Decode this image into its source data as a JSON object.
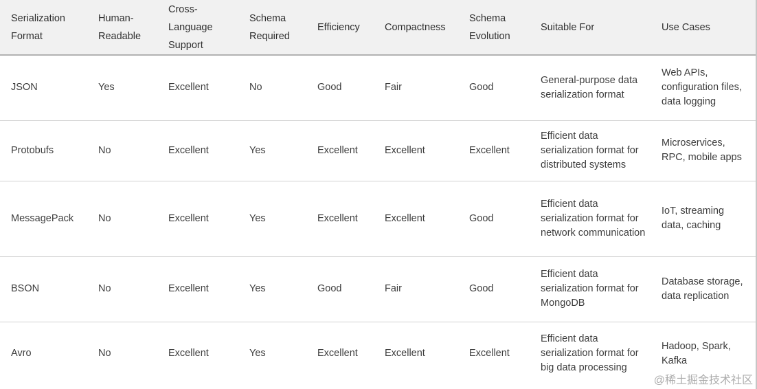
{
  "table": {
    "columns": [
      {
        "id": "format",
        "label": "Serialization Format"
      },
      {
        "id": "human-readable",
        "label": "Human-Readable"
      },
      {
        "id": "cross-language",
        "label": "Cross-Language Support"
      },
      {
        "id": "schema-required",
        "label": "Schema Required"
      },
      {
        "id": "efficiency",
        "label": "Efficiency"
      },
      {
        "id": "compactness",
        "label": "Compactness"
      },
      {
        "id": "schema-evolution",
        "label": "Schema Evolution"
      },
      {
        "id": "suitable-for",
        "label": "Suitable For"
      },
      {
        "id": "use-cases",
        "label": "Use Cases"
      }
    ],
    "rows": [
      [
        "JSON",
        "Yes",
        "Excellent",
        "No",
        "Good",
        "Fair",
        "Good",
        "General-purpose data serialization format",
        "Web APIs, configuration files, data logging"
      ],
      [
        "Protobufs",
        "No",
        "Excellent",
        "Yes",
        "Excellent",
        "Excellent",
        "Excellent",
        "Efficient data serialization format for distributed systems",
        "Microservices, RPC, mobile apps"
      ],
      [
        "MessagePack",
        "No",
        "Excellent",
        "Yes",
        "Excellent",
        "Excellent",
        "Good",
        "Efficient data serialization format for network communication",
        "IoT, streaming data, caching"
      ],
      [
        "BSON",
        "No",
        "Excellent",
        "Yes",
        "Good",
        "Fair",
        "Good",
        "Efficient data serialization format for MongoDB",
        "Database storage, data replication"
      ],
      [
        "Avro",
        "No",
        "Excellent",
        "Yes",
        "Excellent",
        "Excellent",
        "Excellent",
        "Efficient data serialization format for big data processing",
        "Hadoop, Spark, Kafka"
      ]
    ]
  },
  "watermark": {
    "text": "@稀土掘金技术社区"
  },
  "colors": {
    "header_background": "#f1f1f1",
    "header_border": "#b2b2b2",
    "row_separator": "#d2d2d2",
    "right_border": "#c6c6c6",
    "header_text": "#2f2f2f",
    "body_text": "#3d3d3d",
    "watermark_text": "#9e9e9e",
    "page_background": "#ffffff"
  }
}
